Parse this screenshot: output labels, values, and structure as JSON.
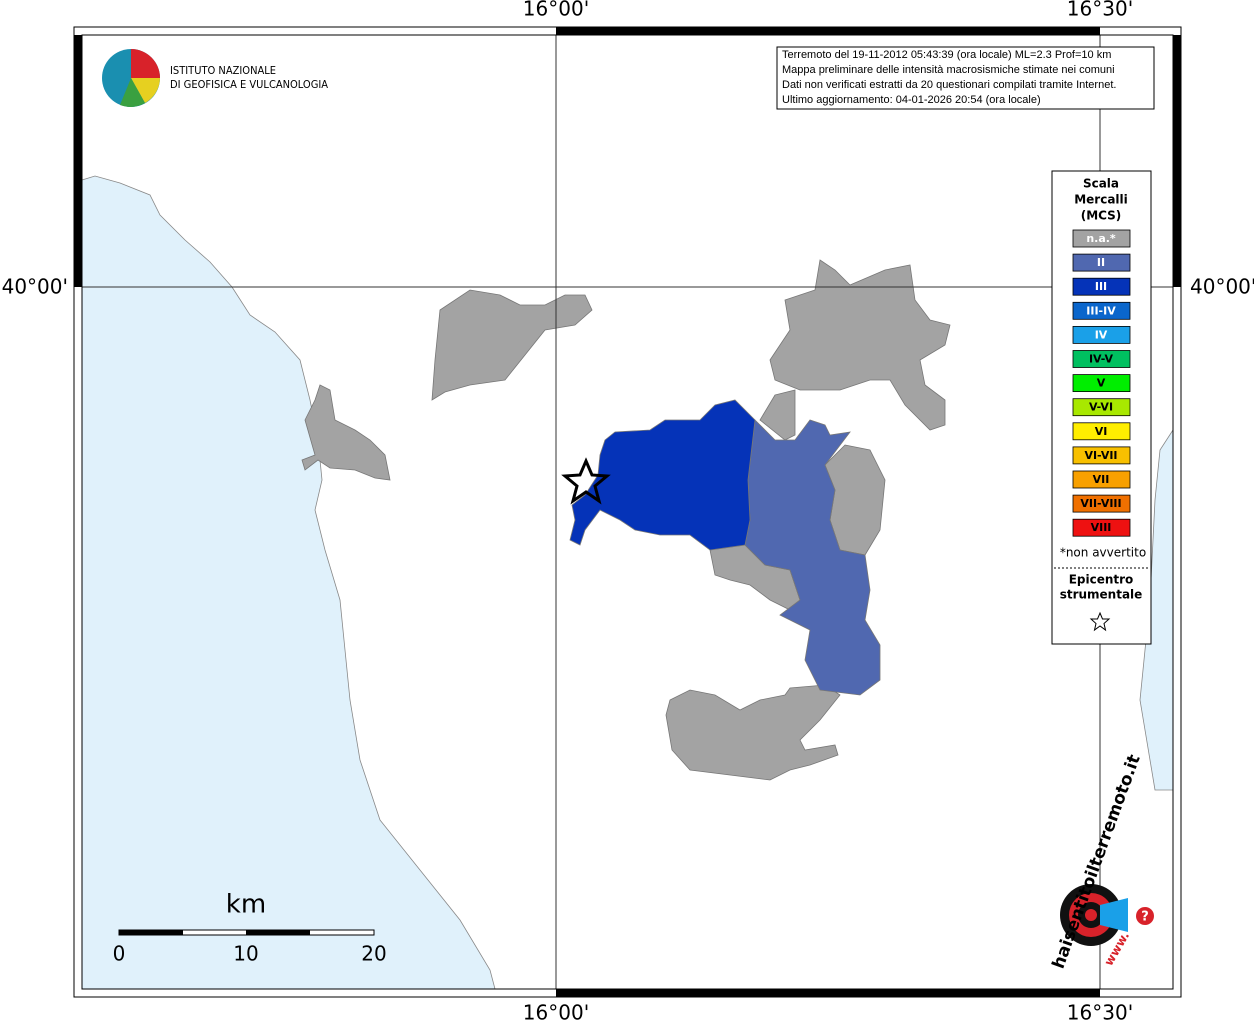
{
  "frame": {
    "top_labels": [
      "16°00'",
      "16°30'"
    ],
    "bottom_labels": [
      "16°00'",
      "16°30'"
    ],
    "left_label": "40°00'",
    "right_label": "40°00'"
  },
  "ingv_logo": {
    "line1": "ISTITUTO NAZIONALE",
    "line2": "DI GEOFISICA E VULCANOLOGIA"
  },
  "info": [
    "Terremoto del 19-11-2012 05:43:39 (ora locale) ML=2.3 Prof=10 km",
    "Mappa preliminare delle intensità macrosismiche stimate nei comuni",
    "Dati non verificati estratti da 20 questionari compilati tramite Internet.",
    "Ultimo aggiornamento: 04-01-2026 20:54 (ora locale)"
  ],
  "legend": {
    "title": [
      "Scala",
      "Mercalli",
      "(MCS)"
    ],
    "levels": [
      {
        "label": "n.a.*",
        "color": "#a3a3a3"
      },
      {
        "label": "II",
        "color": "#5068b0"
      },
      {
        "label": "III",
        "color": "#0533b8"
      },
      {
        "label": "III-IV",
        "color": "#0a66cc"
      },
      {
        "label": "IV",
        "color": "#1aa0e8"
      },
      {
        "label": "IV-V",
        "color": "#00c060"
      },
      {
        "label": "V",
        "color": "#00ee00"
      },
      {
        "label": "V-VI",
        "color": "#a8e800"
      },
      {
        "label": "VI",
        "color": "#ffee00"
      },
      {
        "label": "VI-VII",
        "color": "#f8c000"
      },
      {
        "label": "VII",
        "color": "#f8a000"
      },
      {
        "label": "VII-VIII",
        "color": "#f07000"
      },
      {
        "label": "VIII",
        "color": "#ee1111"
      }
    ],
    "note": "*non avvertito",
    "epicentre": [
      "Epicentro",
      "strumentale"
    ]
  },
  "scale_bar": {
    "unit": "km",
    "labels": [
      "0",
      "10",
      "20"
    ]
  },
  "site_logo": {
    "text": "haisentitoilterremoto.it",
    "prefix": "www.",
    "question": "?"
  }
}
